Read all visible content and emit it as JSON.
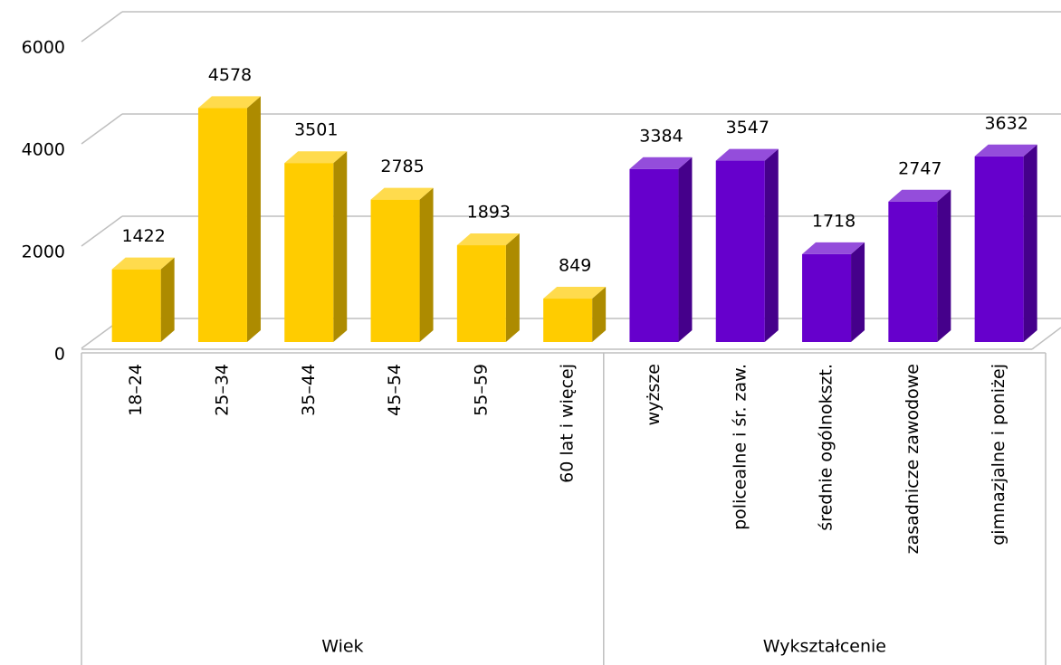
{
  "chart_data": {
    "type": "bar",
    "groups": [
      {
        "name": "Wiek",
        "color": "#ffcc00",
        "categories": [
          "18–24",
          "25–34",
          "35–44",
          "45–54",
          "55–59",
          "60 lat i więcej"
        ],
        "values": [
          1422,
          4578,
          3501,
          2785,
          1893,
          849
        ]
      },
      {
        "name": "Wykształcenie",
        "color": "#6600cc",
        "categories": [
          "wyższe",
          "policealne i śr. zaw.",
          "średnie ogólnokszt.",
          "zasadnicze zawodowe",
          "gimnazjalne i poniżej"
        ],
        "values": [
          3384,
          3547,
          1718,
          2747,
          3632
        ]
      }
    ],
    "ylim": [
      0,
      6000
    ],
    "yticks": [
      0,
      2000,
      4000,
      6000
    ],
    "grid": true
  }
}
